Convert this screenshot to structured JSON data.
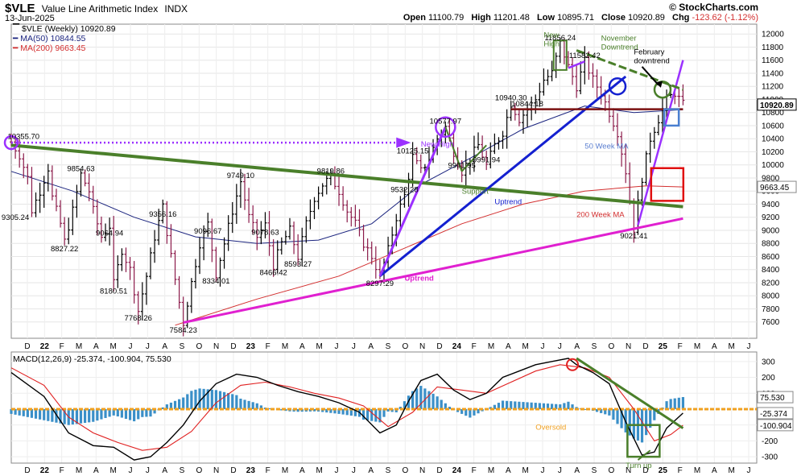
{
  "header": {
    "symbol": "$VLE",
    "name": "Value Line Arithmetic Index",
    "exchange": "INDX",
    "date": "13-Jun-2025",
    "branding": "© StockCharts.com",
    "open_label": "Open",
    "open": "11100.79",
    "high_label": "High",
    "high": "11201.48",
    "low_label": "Low",
    "low": "10895.71",
    "close_label": "Close",
    "close": "10920.89",
    "chg_label": "Chg",
    "chg": "-123.62 (-1.12%)"
  },
  "legend": {
    "price": "$VLE (Weekly) 10920.89",
    "ma50": "MA(50) 10844.55",
    "ma200": "MA(200) 9663.45"
  },
  "colors": {
    "price_bar": "#8b1a4a",
    "ma50": "#1a237e",
    "ma200": "#d32f2f",
    "green_line": "#4a7f2a",
    "magenta_line": "#e020d0",
    "blue_line": "#1420d0",
    "purple_line": "#9b30ff",
    "darkred_line": "#7b1010",
    "red_box": "#e01010",
    "macd_line": "#000000",
    "signal_line": "#e02020",
    "hist": "#3a8fc8",
    "zero_line": "#f0a020"
  },
  "chart_data": [
    {
      "type": "ohlc",
      "title": "$VLE (Weekly) 10920.89",
      "ylim": [
        7350,
        12150
      ],
      "y_ticks": [
        7600,
        7800,
        8000,
        8200,
        8400,
        8600,
        8800,
        9000,
        9200,
        9400,
        9600,
        9800,
        10000,
        10200,
        10400,
        10600,
        10800,
        11000,
        11200,
        11400,
        11600,
        11800,
        12000
      ],
      "x_ticks": [
        "D",
        "22",
        "F",
        "M",
        "A",
        "M",
        "J",
        "J",
        "A",
        "S",
        "O",
        "N",
        "D",
        "23",
        "F",
        "M",
        "A",
        "M",
        "J",
        "J",
        "A",
        "S",
        "O",
        "N",
        "D",
        "24",
        "F",
        "M",
        "A",
        "M",
        "J",
        "J",
        "A",
        "S",
        "O",
        "N",
        "D",
        "25",
        "F",
        "M",
        "A",
        "M",
        "J"
      ],
      "x_range_weeks": [
        0,
        182
      ],
      "price_path": [
        [
          0,
          10350
        ],
        [
          2,
          10150
        ],
        [
          4,
          9800
        ],
        [
          5,
          9305
        ],
        [
          7,
          9600
        ],
        [
          9,
          9950
        ],
        [
          10,
          9500
        ],
        [
          12,
          9100
        ],
        [
          13,
          8827
        ],
        [
          15,
          9300
        ],
        [
          17,
          9854
        ],
        [
          19,
          9600
        ],
        [
          20,
          9300
        ],
        [
          22,
          8900
        ],
        [
          24,
          9064
        ],
        [
          25,
          8180
        ],
        [
          27,
          8700
        ],
        [
          29,
          8400
        ],
        [
          31,
          7768
        ],
        [
          33,
          8300
        ],
        [
          35,
          8900
        ],
        [
          37,
          9356
        ],
        [
          39,
          8600
        ],
        [
          41,
          7900
        ],
        [
          42,
          7584
        ],
        [
          44,
          8200
        ],
        [
          46,
          8800
        ],
        [
          48,
          9096
        ],
        [
          50,
          8334
        ],
        [
          52,
          8800
        ],
        [
          54,
          9300
        ],
        [
          56,
          9749
        ],
        [
          58,
          9200
        ],
        [
          60,
          8900
        ],
        [
          62,
          9078
        ],
        [
          64,
          8466
        ],
        [
          66,
          8800
        ],
        [
          68,
          9000
        ],
        [
          70,
          8593
        ],
        [
          72,
          9100
        ],
        [
          74,
          9500
        ],
        [
          76,
          9700
        ],
        [
          78,
          9819
        ],
        [
          80,
          9600
        ],
        [
          82,
          9300
        ],
        [
          84,
          9100
        ],
        [
          86,
          8800
        ],
        [
          88,
          8600
        ],
        [
          90,
          8297
        ],
        [
          92,
          8700
        ],
        [
          94,
          9200
        ],
        [
          96,
          9532
        ],
        [
          98,
          10125
        ],
        [
          100,
          9900
        ],
        [
          102,
          10100
        ],
        [
          104,
          10400
        ],
        [
          106,
          10578
        ],
        [
          108,
          10200
        ],
        [
          110,
          9901
        ],
        [
          112,
          10100
        ],
        [
          114,
          10300
        ],
        [
          116,
          9991
        ],
        [
          118,
          10300
        ],
        [
          120,
          10500
        ],
        [
          122,
          10940
        ],
        [
          124,
          10700
        ],
        [
          126,
          10844
        ],
        [
          128,
          11000
        ],
        [
          130,
          11300
        ],
        [
          132,
          11400
        ],
        [
          134,
          11856
        ],
        [
          136,
          11500
        ],
        [
          138,
          11200
        ],
        [
          140,
          11582
        ],
        [
          142,
          11300
        ],
        [
          144,
          11100
        ],
        [
          146,
          10800
        ],
        [
          148,
          10500
        ],
        [
          150,
          9900
        ],
        [
          152,
          9021
        ],
        [
          154,
          9800
        ],
        [
          156,
          10400
        ],
        [
          158,
          10700
        ],
        [
          160,
          11000
        ],
        [
          162,
          11100
        ],
        [
          164,
          10921
        ]
      ],
      "ma50_path": [
        [
          0,
          9900
        ],
        [
          15,
          9600
        ],
        [
          30,
          9200
        ],
        [
          45,
          8900
        ],
        [
          60,
          8800
        ],
        [
          75,
          8850
        ],
        [
          88,
          9100
        ],
        [
          100,
          9700
        ],
        [
          112,
          10100
        ],
        [
          125,
          10550
        ],
        [
          140,
          10900
        ],
        [
          152,
          10800
        ],
        [
          164,
          10844
        ]
      ],
      "ma200_path": [
        [
          40,
          7550
        ],
        [
          60,
          7950
        ],
        [
          80,
          8300
        ],
        [
          95,
          8700
        ],
        [
          110,
          9100
        ],
        [
          125,
          9400
        ],
        [
          140,
          9600
        ],
        [
          155,
          9680
        ],
        [
          164,
          9663
        ]
      ],
      "price_labels": [
        {
          "x": 3,
          "y": 10350,
          "text": "10355.70"
        },
        {
          "x": 1,
          "y": 9305,
          "text": "9305.24"
        },
        {
          "x": 17,
          "y": 9854,
          "text": "9854.63"
        },
        {
          "x": 13,
          "y": 8827,
          "text": "8827.22"
        },
        {
          "x": 24,
          "y": 9064,
          "text": "9064.94"
        },
        {
          "x": 25,
          "y": 8180,
          "text": "8180.51"
        },
        {
          "x": 31,
          "y": 7768,
          "text": "7768.26"
        },
        {
          "x": 37,
          "y": 9356,
          "text": "9356.16"
        },
        {
          "x": 42,
          "y": 7584,
          "text": "7584.23"
        },
        {
          "x": 48,
          "y": 9096,
          "text": "9096.67"
        },
        {
          "x": 50,
          "y": 8334,
          "text": "8334.01"
        },
        {
          "x": 56,
          "y": 9749,
          "text": "9749.10"
        },
        {
          "x": 62,
          "y": 9078,
          "text": "9078.63"
        },
        {
          "x": 64,
          "y": 8466,
          "text": "8466.42"
        },
        {
          "x": 70,
          "y": 8593,
          "text": "8593.27"
        },
        {
          "x": 78,
          "y": 9819,
          "text": "9819.86"
        },
        {
          "x": 90,
          "y": 8297,
          "text": "8297.29"
        },
        {
          "x": 96,
          "y": 9532,
          "text": "9532.28"
        },
        {
          "x": 98,
          "y": 10125,
          "text": "10125.15"
        },
        {
          "x": 106,
          "y": 10578,
          "text": "10577.97"
        },
        {
          "x": 110,
          "y": 9901,
          "text": "9901.95"
        },
        {
          "x": 116,
          "y": 9991,
          "text": "9991.94"
        },
        {
          "x": 122,
          "y": 10940,
          "text": "10940.30"
        },
        {
          "x": 126,
          "y": 10844,
          "text": "10844.18"
        },
        {
          "x": 134,
          "y": 11856,
          "text": "11856.24"
        },
        {
          "x": 140,
          "y": 11582,
          "text": "11582.42"
        },
        {
          "x": 152,
          "y": 9021,
          "text": "9021.41"
        }
      ],
      "annotations": [
        {
          "text": "New High",
          "color": "#9b30ff"
        },
        {
          "text": "Uptrend",
          "color": "#e020d0"
        },
        {
          "text": "Support",
          "color": "#4a7f2a"
        },
        {
          "text": "Uptrend",
          "color": "#1420d0"
        },
        {
          "text": "50 Week MA",
          "color": "#5b7fd0"
        },
        {
          "text": "200 Week MA",
          "color": "#d32f2f"
        },
        {
          "text": "New High",
          "color": "#4a7f2a"
        },
        {
          "text": "November Downtrend",
          "color": "#4a7f2a"
        },
        {
          "text": "February downtrend",
          "color": "#000000"
        }
      ],
      "right_axis_badges": [
        {
          "y": 10921,
          "text": "10920.89"
        },
        {
          "y": 9663,
          "text": "9663.45"
        }
      ]
    },
    {
      "type": "macd",
      "title": "MACD(12,26,9) -25.374, -100.904, 75.530",
      "ylim": [
        -340,
        360
      ],
      "y_ticks": [
        300,
        200,
        100,
        0,
        -100,
        -200,
        -300
      ],
      "macd_label": "-25.374",
      "signal_label": "-100.904",
      "hist_label": "75.530",
      "macd_path": [
        [
          0,
          230
        ],
        [
          8,
          80
        ],
        [
          14,
          -150
        ],
        [
          20,
          -230
        ],
        [
          25,
          -240
        ],
        [
          30,
          -320
        ],
        [
          34,
          -300
        ],
        [
          38,
          -210
        ],
        [
          42,
          -100
        ],
        [
          46,
          50
        ],
        [
          50,
          160
        ],
        [
          55,
          220
        ],
        [
          60,
          200
        ],
        [
          65,
          150
        ],
        [
          70,
          110
        ],
        [
          75,
          80
        ],
        [
          80,
          40
        ],
        [
          85,
          -20
        ],
        [
          90,
          -150
        ],
        [
          94,
          -100
        ],
        [
          97,
          50
        ],
        [
          100,
          180
        ],
        [
          104,
          220
        ],
        [
          108,
          120
        ],
        [
          112,
          60
        ],
        [
          116,
          100
        ],
        [
          120,
          200
        ],
        [
          124,
          240
        ],
        [
          128,
          280
        ],
        [
          132,
          300
        ],
        [
          136,
          320
        ],
        [
          138,
          280
        ],
        [
          142,
          230
        ],
        [
          146,
          160
        ],
        [
          150,
          -80
        ],
        [
          154,
          -290
        ],
        [
          157,
          -270
        ],
        [
          160,
          -120
        ],
        [
          164,
          -25
        ]
      ],
      "signal_path": [
        [
          0,
          260
        ],
        [
          8,
          150
        ],
        [
          14,
          -50
        ],
        [
          20,
          -150
        ],
        [
          26,
          -210
        ],
        [
          32,
          -260
        ],
        [
          38,
          -240
        ],
        [
          44,
          -140
        ],
        [
          50,
          40
        ],
        [
          56,
          150
        ],
        [
          62,
          170
        ],
        [
          68,
          140
        ],
        [
          74,
          100
        ],
        [
          80,
          70
        ],
        [
          86,
          20
        ],
        [
          92,
          -110
        ],
        [
          98,
          -20
        ],
        [
          104,
          140
        ],
        [
          110,
          120
        ],
        [
          116,
          100
        ],
        [
          122,
          170
        ],
        [
          128,
          240
        ],
        [
          134,
          280
        ],
        [
          140,
          260
        ],
        [
          146,
          200
        ],
        [
          152,
          0
        ],
        [
          157,
          -200
        ],
        [
          161,
          -160
        ],
        [
          164,
          -101
        ]
      ],
      "annotations": [
        {
          "text": "Oversold",
          "color": "#f0a020"
        },
        {
          "text": "Turn up",
          "color": "#4a7f2a"
        }
      ]
    }
  ]
}
